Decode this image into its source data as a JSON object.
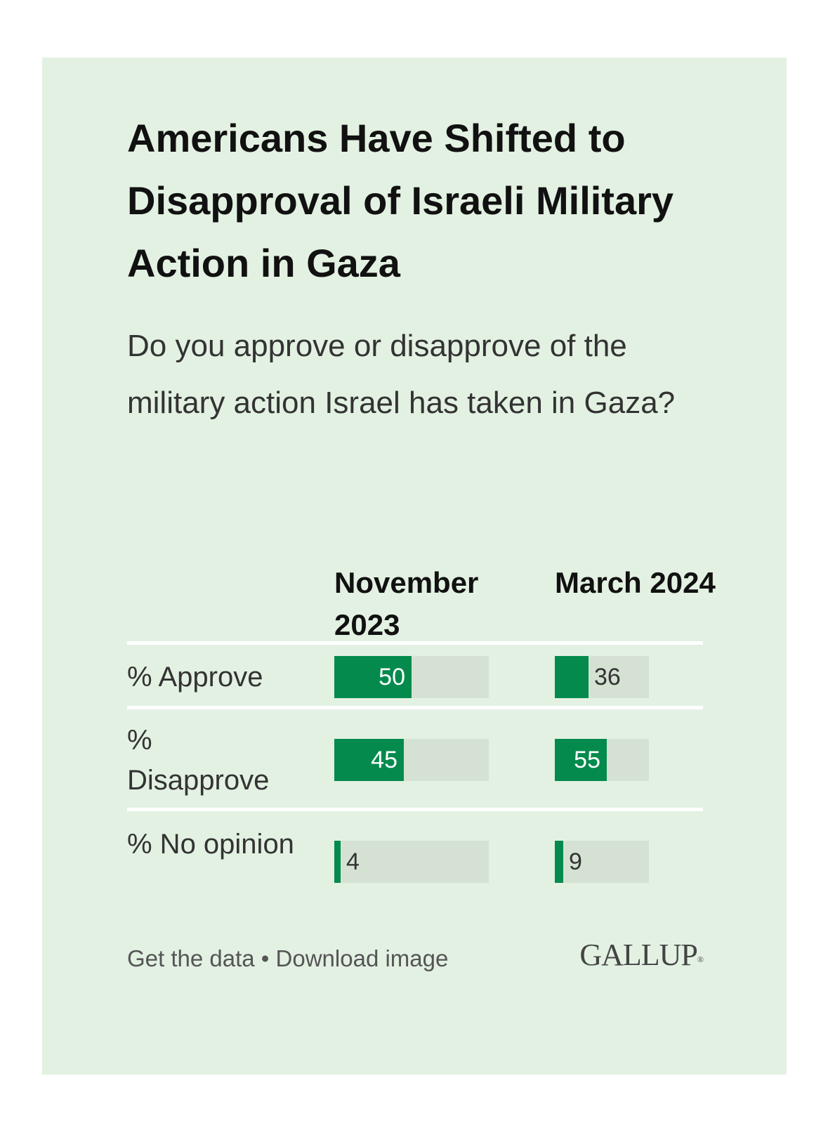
{
  "chart_data": {
    "type": "bar",
    "title": "Americans Have Shifted to Disapproval of Israeli Military Action in Gaza",
    "subtitle": "Do you approve or disapprove of the military action Israel has taken in Gaza?",
    "columns": [
      "November 2023",
      "March 2024"
    ],
    "categories": [
      "% Approve",
      "% Disapprove",
      "% No opinion"
    ],
    "series": [
      {
        "name": "November 2023",
        "values": [
          50,
          45,
          4
        ]
      },
      {
        "name": "March 2024",
        "values": [
          36,
          55,
          9
        ]
      }
    ],
    "ylim": [
      0,
      100
    ],
    "colors": {
      "fill": "#048a4d",
      "track": "#d5e2d3"
    }
  },
  "footer": {
    "get_data": "Get the data",
    "separator": " • ",
    "download": "Download image",
    "logo": "GALLUP",
    "logo_mark": "®"
  }
}
